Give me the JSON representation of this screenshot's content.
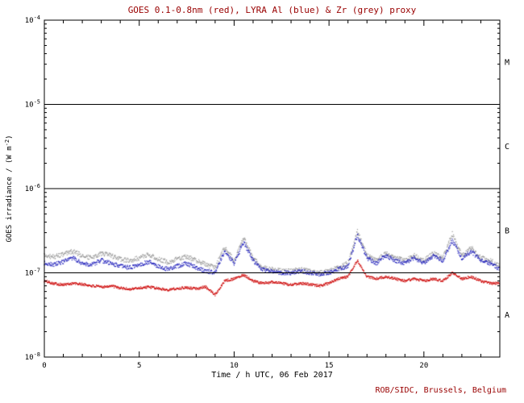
{
  "title": "GOES 0.1-0.8nm (red), LYRA Al (blue) & Zr (grey) proxy",
  "footer": "ROB/SIDC, Brussels, Belgium",
  "axes": {
    "xlabel": "Time / h UTC, 06 Feb 2017",
    "ylabel": {
      "prefix": "GOES irradiance / (W m",
      "sup": "-2",
      "suffix": ")"
    },
    "x_range": [
      0,
      24
    ],
    "x_major_ticks": [
      0,
      5,
      10,
      15,
      20
    ],
    "x_minor_step": 1,
    "y_tick_exponents": [
      -4,
      -5,
      -6,
      -7,
      -8
    ],
    "y_range_exponents": [
      -4,
      -8
    ]
  },
  "flare_classes": {
    "labels": [
      "M",
      "C",
      "B",
      "A"
    ],
    "band_center_exponents": [
      -4.5,
      -5.5,
      -6.5,
      -7.5
    ],
    "boundary_exponents": [
      -5,
      -6,
      -7
    ]
  },
  "colors": {
    "red": "#cc0000",
    "blue": "#2222bb",
    "grey": "#9a9a9a",
    "frame": "#000000",
    "title": "#990000",
    "footer": "#990000"
  },
  "chart_data": {
    "type": "scatter",
    "title": "GOES 0.1-0.8nm (red), LYRA Al (blue) & Zr (grey) proxy",
    "xlabel": "Time / h UTC, 06 Feb 2017",
    "ylabel": "GOES irradiance / (W m^-2)",
    "xlim": [
      0,
      24
    ],
    "ylim": [
      1e-08,
      0.0001
    ],
    "yscale": "log",
    "x": [
      0,
      0.5,
      1,
      1.5,
      2,
      2.5,
      3,
      3.5,
      4,
      4.5,
      5,
      5.5,
      6,
      6.5,
      7,
      7.5,
      8,
      8.5,
      9,
      9.5,
      10,
      10.5,
      11,
      11.5,
      12,
      12.5,
      13,
      13.5,
      14,
      14.5,
      15,
      15.5,
      16,
      16.5,
      17,
      17.5,
      18,
      18.5,
      19,
      19.5,
      20,
      20.5,
      21,
      21.5,
      22,
      22.5,
      23,
      23.5,
      24
    ],
    "series": [
      {
        "name": "GOES 0.1-0.8nm",
        "color": "#cc0000",
        "values": [
          8e-08,
          7.5e-08,
          7.2e-08,
          7.5e-08,
          7.3e-08,
          7e-08,
          6.8e-08,
          7e-08,
          6.6e-08,
          6.4e-08,
          6.6e-08,
          6.8e-08,
          6.5e-08,
          6.3e-08,
          6.5e-08,
          6.7e-08,
          6.5e-08,
          6.8e-08,
          5.5e-08,
          8e-08,
          8.5e-08,
          9.5e-08,
          8e-08,
          7.5e-08,
          7.8e-08,
          7.5e-08,
          7.2e-08,
          7.5e-08,
          7.3e-08,
          7e-08,
          7.5e-08,
          8.5e-08,
          9e-08,
          1.4e-07,
          9e-08,
          8.5e-08,
          9e-08,
          8.5e-08,
          8e-08,
          8.5e-08,
          8e-08,
          8.5e-08,
          8e-08,
          1e-07,
          8.5e-08,
          9e-08,
          8e-08,
          7.5e-08,
          7.5e-08
        ]
      },
      {
        "name": "LYRA Al proxy",
        "color": "#2222bb",
        "values": [
          1.3e-07,
          1.25e-07,
          1.35e-07,
          1.5e-07,
          1.3e-07,
          1.25e-07,
          1.4e-07,
          1.3e-07,
          1.2e-07,
          1.15e-07,
          1.25e-07,
          1.35e-07,
          1.2e-07,
          1.1e-07,
          1.2e-07,
          1.3e-07,
          1.15e-07,
          1.05e-07,
          1e-07,
          1.8e-07,
          1.3e-07,
          2.3e-07,
          1.4e-07,
          1.1e-07,
          1.05e-07,
          1e-07,
          1e-07,
          1.05e-07,
          1e-07,
          9.5e-08,
          1e-07,
          1.1e-07,
          1.2e-07,
          2.8e-07,
          1.5e-07,
          1.3e-07,
          1.6e-07,
          1.4e-07,
          1.3e-07,
          1.5e-07,
          1.3e-07,
          1.6e-07,
          1.4e-07,
          2.4e-07,
          1.5e-07,
          1.8e-07,
          1.4e-07,
          1.3e-07,
          1.1e-07
        ]
      },
      {
        "name": "LYRA Zr proxy",
        "color": "#9a9a9a",
        "values": [
          1.6e-07,
          1.55e-07,
          1.65e-07,
          1.8e-07,
          1.6e-07,
          1.5e-07,
          1.7e-07,
          1.6e-07,
          1.45e-07,
          1.4e-07,
          1.5e-07,
          1.65e-07,
          1.45e-07,
          1.35e-07,
          1.45e-07,
          1.55e-07,
          1.4e-07,
          1.25e-07,
          1.15e-07,
          2e-07,
          1.4e-07,
          2.6e-07,
          1.5e-07,
          1.15e-07,
          1.1e-07,
          1.05e-07,
          1.05e-07,
          1.1e-07,
          1.05e-07,
          1e-07,
          1.05e-07,
          1.15e-07,
          1.3e-07,
          3.1e-07,
          1.6e-07,
          1.4e-07,
          1.7e-07,
          1.5e-07,
          1.4e-07,
          1.6e-07,
          1.4e-07,
          1.7e-07,
          1.5e-07,
          2.9e-07,
          1.6e-07,
          2e-07,
          1.5e-07,
          1.4e-07,
          1.2e-07
        ]
      }
    ]
  }
}
